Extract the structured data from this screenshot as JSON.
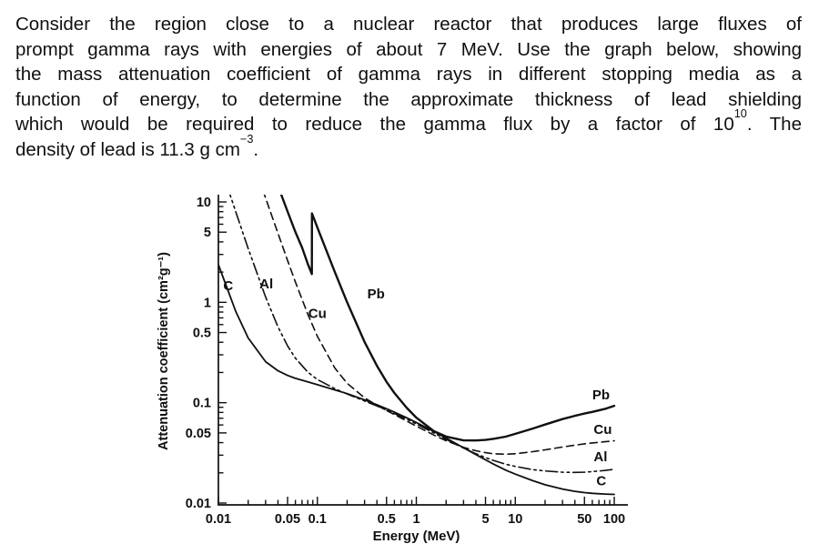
{
  "colors": {
    "ink": "#101010",
    "background": "#ffffff"
  },
  "problem": {
    "lines": [
      "Consider the region close to a nuclear reactor that produces large fluxes of",
      "prompt gamma rays with energies of about 7 MeV. Use the graph below, showing",
      "the mass attenuation coefficient of gamma rays in different stopping media as a",
      "function of energy, to determine the approximate thickness of lead shielding",
      {
        "pre": "which would be required to reduce the gamma flux by a factor of 10",
        "sup": "10",
        "post": ". The"
      },
      {
        "pre": "density of lead is 11.3 g cm",
        "sup": "−3",
        "post": "."
      }
    ]
  },
  "chart_data": {
    "type": "line",
    "title": "",
    "xlabel": "Energy (MeV)",
    "ylabel": "Attenuation coefficient (cm²g⁻¹)",
    "x_scale": "log",
    "y_scale": "log",
    "xlim": [
      0.01,
      100
    ],
    "ylim": [
      0.01,
      10
    ],
    "grid": false,
    "x_tick_values": [
      0.01,
      0.05,
      0.1,
      0.5,
      1,
      5,
      10,
      50,
      100
    ],
    "x_tick_labels": [
      "0.01",
      "0.05",
      "0.1",
      "0.5",
      "1",
      "5",
      "10",
      "50",
      "100"
    ],
    "y_tick_values": [
      10,
      5,
      1,
      0.5,
      0.1,
      0.05,
      0.01
    ],
    "y_tick_labels": [
      "10",
      "5",
      "1",
      "0.5",
      "0.1",
      "0.05",
      "0.01"
    ],
    "series": [
      {
        "name": "C",
        "line_style": "solid",
        "stroke_width": 1.8,
        "label_left": {
          "text": "C",
          "E": 0.0112,
          "v": 1.32
        },
        "label_right": {
          "text": "C",
          "E": 66,
          "v": 0.015
        },
        "points": [
          [
            0.01,
            2.37
          ],
          [
            0.015,
            0.81
          ],
          [
            0.02,
            0.442
          ],
          [
            0.03,
            0.256
          ],
          [
            0.04,
            0.208
          ],
          [
            0.05,
            0.187
          ],
          [
            0.06,
            0.175
          ],
          [
            0.08,
            0.161
          ],
          [
            0.1,
            0.151
          ],
          [
            0.15,
            0.134
          ],
          [
            0.2,
            0.123
          ],
          [
            0.3,
            0.1066
          ],
          [
            0.4,
            0.0953
          ],
          [
            0.5,
            0.087
          ],
          [
            0.6,
            0.0805
          ],
          [
            0.8,
            0.0707
          ],
          [
            1,
            0.0636
          ],
          [
            1.5,
            0.0518
          ],
          [
            2,
            0.0444
          ],
          [
            3,
            0.0356
          ],
          [
            4,
            0.0304
          ],
          [
            5,
            0.027
          ],
          [
            6,
            0.0245
          ],
          [
            8,
            0.0213
          ],
          [
            10,
            0.0194
          ],
          [
            15,
            0.0167
          ],
          [
            20,
            0.0152
          ],
          [
            30,
            0.0138
          ],
          [
            40,
            0.0131
          ],
          [
            50,
            0.0127
          ],
          [
            60,
            0.0125
          ],
          [
            80,
            0.0123
          ],
          [
            100,
            0.0122
          ]
        ]
      },
      {
        "name": "Al",
        "line_style": "dashdotdot",
        "stroke_width": 1.6,
        "label_left": {
          "text": "Al",
          "E": 0.026,
          "v": 1.38
        },
        "label_right": {
          "text": "Al",
          "E": 62,
          "v": 0.0262
        },
        "points": [
          [
            0.01,
            26.2
          ],
          [
            0.015,
            7.96
          ],
          [
            0.02,
            3.44
          ],
          [
            0.03,
            1.128
          ],
          [
            0.04,
            0.568
          ],
          [
            0.05,
            0.368
          ],
          [
            0.06,
            0.278
          ],
          [
            0.08,
            0.202
          ],
          [
            0.1,
            0.17
          ],
          [
            0.15,
            0.138
          ],
          [
            0.2,
            0.122
          ],
          [
            0.3,
            0.104
          ],
          [
            0.4,
            0.0927
          ],
          [
            0.5,
            0.0844
          ],
          [
            0.6,
            0.078
          ],
          [
            0.8,
            0.0684
          ],
          [
            1,
            0.0614
          ],
          [
            1.5,
            0.05
          ],
          [
            2,
            0.0432
          ],
          [
            3,
            0.0353
          ],
          [
            4,
            0.031
          ],
          [
            5,
            0.0284
          ],
          [
            6,
            0.0266
          ],
          [
            8,
            0.0244
          ],
          [
            10,
            0.0232
          ],
          [
            15,
            0.0215
          ],
          [
            20,
            0.0209
          ],
          [
            30,
            0.0203
          ],
          [
            40,
            0.0202
          ],
          [
            50,
            0.0203
          ],
          [
            60,
            0.0206
          ],
          [
            80,
            0.0211
          ],
          [
            100,
            0.0217
          ]
        ]
      },
      {
        "name": "Cu",
        "line_style": "dashed",
        "stroke_width": 1.6,
        "label_left": {
          "text": "Cu",
          "E": 0.081,
          "v": 0.7
        },
        "label_right": {
          "text": "Cu",
          "E": 62,
          "v": 0.0487
        },
        "points": [
          [
            0.01,
            215.9
          ],
          [
            0.015,
            74.1
          ],
          [
            0.02,
            33.8
          ],
          [
            0.03,
            10.92
          ],
          [
            0.04,
            4.86
          ],
          [
            0.05,
            2.613
          ],
          [
            0.06,
            1.593
          ],
          [
            0.08,
            0.763
          ],
          [
            0.1,
            0.458
          ],
          [
            0.15,
            0.2217
          ],
          [
            0.2,
            0.1559
          ],
          [
            0.3,
            0.1119
          ],
          [
            0.4,
            0.094
          ],
          [
            0.5,
            0.0836
          ],
          [
            0.6,
            0.0762
          ],
          [
            0.8,
            0.0656
          ],
          [
            1,
            0.0585
          ],
          [
            1.5,
            0.0476
          ],
          [
            2,
            0.0418
          ],
          [
            3,
            0.0359
          ],
          [
            4,
            0.0332
          ],
          [
            5,
            0.0318
          ],
          [
            6,
            0.031
          ],
          [
            8,
            0.0307
          ],
          [
            10,
            0.031
          ],
          [
            15,
            0.0325
          ],
          [
            20,
            0.0339
          ],
          [
            30,
            0.0362
          ],
          [
            40,
            0.0377
          ],
          [
            50,
            0.0389
          ],
          [
            60,
            0.0397
          ],
          [
            80,
            0.0408
          ],
          [
            100,
            0.0417
          ]
        ]
      },
      {
        "name": "Pb",
        "line_style": "solid",
        "stroke_width": 2.4,
        "label_left": {
          "text": "Pb",
          "E": 0.32,
          "v": 1.1
        },
        "label_right": {
          "text": "Pb",
          "E": 60,
          "v": 0.108
        },
        "points": [
          [
            0.03,
            30.3
          ],
          [
            0.04,
            14.4
          ],
          [
            0.05,
            8.04
          ],
          [
            0.06,
            5.02
          ],
          [
            0.07,
            3.52
          ],
          [
            0.08,
            2.42
          ],
          [
            0.088,
            1.91
          ],
          [
            0.0881,
            7.68
          ],
          [
            0.1,
            5.55
          ],
          [
            0.15,
            2.01
          ],
          [
            0.2,
            0.999
          ],
          [
            0.3,
            0.403
          ],
          [
            0.4,
            0.233
          ],
          [
            0.5,
            0.161
          ],
          [
            0.6,
            0.125
          ],
          [
            0.8,
            0.0887
          ],
          [
            1,
            0.071
          ],
          [
            1.5,
            0.0522
          ],
          [
            2,
            0.046
          ],
          [
            3,
            0.0421
          ],
          [
            4,
            0.042
          ],
          [
            5,
            0.0426
          ],
          [
            6,
            0.0436
          ],
          [
            8,
            0.0459
          ],
          [
            10,
            0.0489
          ],
          [
            15,
            0.0552
          ],
          [
            20,
            0.0606
          ],
          [
            30,
            0.0686
          ],
          [
            40,
            0.074
          ],
          [
            50,
            0.078
          ],
          [
            60,
            0.081
          ],
          [
            80,
            0.0866
          ],
          [
            100,
            0.0931
          ]
        ]
      }
    ]
  }
}
